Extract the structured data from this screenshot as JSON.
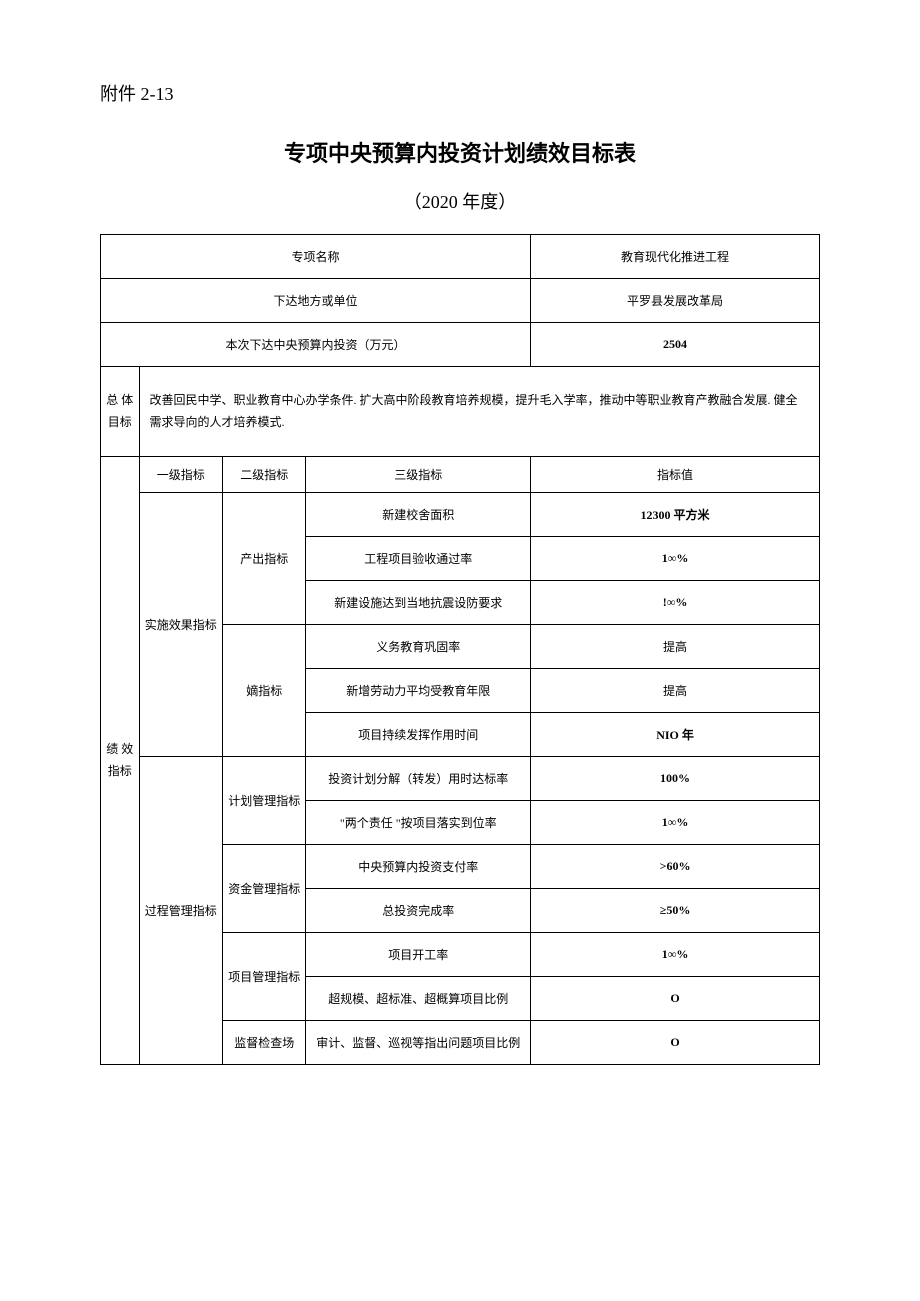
{
  "attachment": "附件 2-13",
  "title": "专项中央预算内投资计划绩效目标表",
  "subtitle": "（2020 年度）",
  "header_rows": [
    {
      "label": "专项名称",
      "value": "教育现代化推进工程"
    },
    {
      "label": "下达地方或单位",
      "value": "平罗县发展改革局"
    },
    {
      "label": "本次下达中央预算内投资（万元）",
      "value": "2504"
    }
  ],
  "overall_label_l1": "总 体",
  "overall_label_l2": "目标",
  "overall_text": "改善回民中学、职业教育中心办学条件. 扩大高中阶段教育培养规模，提升毛入学率，推动中等职业教育产教融合发展. 健全需求导向的人才培养模式.",
  "perf_label": "绩 效指标",
  "columns": {
    "l1": "一级指标",
    "l2": "二级指标",
    "l3": "三级指标",
    "val": "指标值"
  },
  "groups": [
    {
      "l1": "实施效果指标",
      "subs": [
        {
          "l2": "产出指标",
          "rows": [
            {
              "l3": "新建校舍面积",
              "val": "12300 平方米",
              "bold": true
            },
            {
              "l3": "工程项目验收通过率",
              "val": "1∞%",
              "bold": true
            },
            {
              "l3": "新建设施达到当地抗震设防要求",
              "val": "!∞%",
              "bold": true
            }
          ]
        },
        {
          "l2": "嫡指标",
          "rows": [
            {
              "l3": "义务教育巩固率",
              "val": "提高"
            },
            {
              "l3": "新增劳动力平均受教育年限",
              "val": "提高"
            },
            {
              "l3": "项目持续发挥作用时间",
              "val": "NIO 年",
              "bold": true
            }
          ]
        }
      ]
    },
    {
      "l1": "过程管理指标",
      "subs": [
        {
          "l2": "计划管理指标",
          "rows": [
            {
              "l3": "投资计划分解（转发）用时达标率",
              "val": "100%",
              "bold": true
            },
            {
              "l3": "\"两个责任 \"按项目落实到位率",
              "val": "1∞%",
              "bold": true
            }
          ]
        },
        {
          "l2": "资金管理指标",
          "rows": [
            {
              "l3": "中央预算内投资支付率",
              "val": ">60%",
              "bold": true
            },
            {
              "l3": "总投资完成率",
              "val": "≥50%",
              "bold": true
            }
          ]
        },
        {
          "l2": "项目管理指标",
          "rows": [
            {
              "l3": "项目开工率",
              "val": "1∞%",
              "bold": true
            },
            {
              "l3": "超规模、超标准、超概算项目比例",
              "val": "O",
              "bold": true
            }
          ]
        },
        {
          "l2": "监督检查场",
          "rows": [
            {
              "l3": "审计、监督、巡视等指出问题项目比例",
              "val": "O",
              "bold": true
            }
          ]
        }
      ]
    }
  ]
}
